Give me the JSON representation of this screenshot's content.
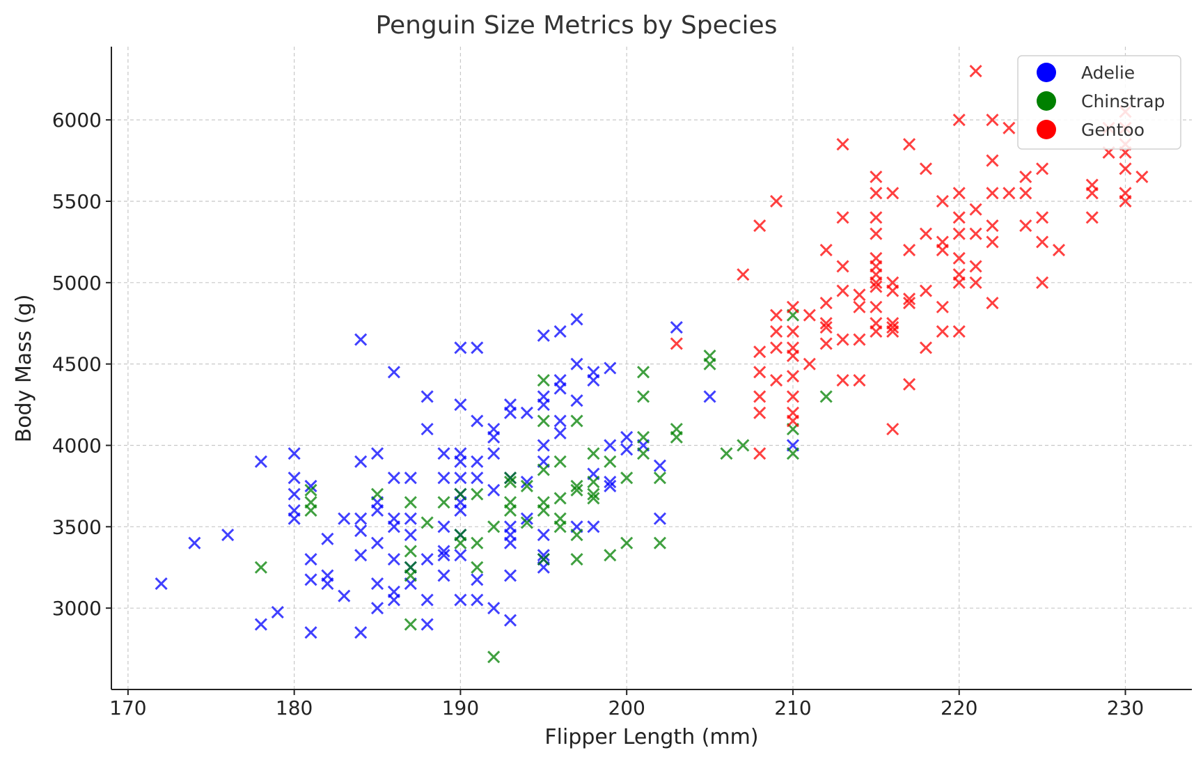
{
  "chart_data": {
    "type": "scatter",
    "title": "Penguin Size Metrics by Species",
    "xlabel": "Flipper Length (mm)",
    "ylabel": "Body Mass (g)",
    "xlim": [
      169,
      234
    ],
    "ylim": [
      2500,
      6450
    ],
    "xticks": [
      170,
      180,
      190,
      200,
      210,
      220,
      230
    ],
    "yticks": [
      3000,
      3500,
      4000,
      4500,
      5000,
      5500,
      6000
    ],
    "grid": true,
    "marker": "x",
    "legend_position": "top-right",
    "series": [
      {
        "name": "Adelie",
        "color": "#0000ff",
        "points": [
          [
            172,
            3150
          ],
          [
            174,
            3400
          ],
          [
            176,
            3450
          ],
          [
            178,
            3900
          ],
          [
            178,
            2900
          ],
          [
            179,
            2975
          ],
          [
            180,
            3950
          ],
          [
            180,
            3800
          ],
          [
            180,
            3700
          ],
          [
            180,
            3600
          ],
          [
            180,
            3550
          ],
          [
            181,
            3750
          ],
          [
            181,
            3300
          ],
          [
            181,
            3175
          ],
          [
            181,
            2850
          ],
          [
            182,
            3425
          ],
          [
            182,
            3200
          ],
          [
            182,
            3150
          ],
          [
            183,
            3550
          ],
          [
            183,
            3075
          ],
          [
            184,
            4650
          ],
          [
            184,
            3900
          ],
          [
            184,
            3550
          ],
          [
            184,
            3475
          ],
          [
            184,
            3325
          ],
          [
            184,
            2850
          ],
          [
            185,
            3950
          ],
          [
            185,
            3650
          ],
          [
            185,
            3600
          ],
          [
            185,
            3400
          ],
          [
            185,
            3150
          ],
          [
            185,
            3000
          ],
          [
            186,
            4450
          ],
          [
            186,
            3800
          ],
          [
            186,
            3550
          ],
          [
            186,
            3500
          ],
          [
            186,
            3300
          ],
          [
            186,
            3100
          ],
          [
            186,
            3050
          ],
          [
            187,
            3800
          ],
          [
            187,
            3550
          ],
          [
            187,
            3450
          ],
          [
            187,
            3250
          ],
          [
            187,
            3150
          ],
          [
            188,
            4300
          ],
          [
            188,
            4100
          ],
          [
            188,
            3300
          ],
          [
            188,
            3050
          ],
          [
            188,
            2900
          ],
          [
            189,
            3950
          ],
          [
            189,
            3800
          ],
          [
            189,
            3500
          ],
          [
            189,
            3350
          ],
          [
            189,
            3325
          ],
          [
            189,
            3200
          ],
          [
            190,
            4600
          ],
          [
            190,
            4250
          ],
          [
            190,
            3950
          ],
          [
            190,
            3900
          ],
          [
            190,
            3800
          ],
          [
            190,
            3700
          ],
          [
            190,
            3650
          ],
          [
            190,
            3600
          ],
          [
            190,
            3450
          ],
          [
            190,
            3325
          ],
          [
            190,
            3050
          ],
          [
            191,
            4600
          ],
          [
            191,
            4150
          ],
          [
            191,
            3900
          ],
          [
            191,
            3800
          ],
          [
            191,
            3175
          ],
          [
            191,
            3050
          ],
          [
            192,
            4100
          ],
          [
            192,
            4050
          ],
          [
            192,
            3950
          ],
          [
            192,
            3725
          ],
          [
            192,
            3000
          ],
          [
            193,
            4250
          ],
          [
            193,
            4200
          ],
          [
            193,
            3800
          ],
          [
            193,
            3500
          ],
          [
            193,
            3450
          ],
          [
            193,
            3400
          ],
          [
            193,
            3200
          ],
          [
            193,
            2925
          ],
          [
            194,
            4200
          ],
          [
            194,
            3775
          ],
          [
            194,
            3550
          ],
          [
            195,
            4675
          ],
          [
            195,
            4300
          ],
          [
            195,
            4250
          ],
          [
            195,
            4000
          ],
          [
            195,
            3900
          ],
          [
            195,
            3450
          ],
          [
            195,
            3325
          ],
          [
            195,
            3300
          ],
          [
            195,
            3250
          ],
          [
            196,
            4700
          ],
          [
            196,
            4400
          ],
          [
            196,
            4350
          ],
          [
            196,
            4150
          ],
          [
            196,
            4075
          ],
          [
            197,
            4775
          ],
          [
            197,
            4500
          ],
          [
            197,
            4275
          ],
          [
            197,
            3500
          ],
          [
            198,
            4450
          ],
          [
            198,
            4400
          ],
          [
            198,
            3825
          ],
          [
            198,
            3500
          ],
          [
            199,
            4475
          ],
          [
            199,
            4000
          ],
          [
            199,
            3775
          ],
          [
            199,
            3750
          ],
          [
            200,
            4050
          ],
          [
            200,
            3975
          ],
          [
            201,
            4000
          ],
          [
            202,
            3875
          ],
          [
            202,
            3550
          ],
          [
            203,
            4725
          ],
          [
            205,
            4300
          ],
          [
            210,
            4000
          ]
        ]
      },
      {
        "name": "Chinstrap",
        "color": "#008000",
        "points": [
          [
            178,
            3250
          ],
          [
            181,
            3725
          ],
          [
            181,
            3650
          ],
          [
            181,
            3600
          ],
          [
            185,
            3700
          ],
          [
            187,
            3650
          ],
          [
            187,
            3350
          ],
          [
            187,
            3250
          ],
          [
            187,
            3200
          ],
          [
            187,
            2900
          ],
          [
            188,
            3525
          ],
          [
            189,
            3650
          ],
          [
            190,
            3700
          ],
          [
            190,
            3450
          ],
          [
            190,
            3400
          ],
          [
            191,
            3700
          ],
          [
            191,
            3400
          ],
          [
            191,
            3250
          ],
          [
            192,
            3500
          ],
          [
            192,
            2700
          ],
          [
            193,
            3800
          ],
          [
            193,
            3775
          ],
          [
            193,
            3650
          ],
          [
            193,
            3600
          ],
          [
            194,
            3525
          ],
          [
            194,
            3750
          ],
          [
            195,
            4400
          ],
          [
            195,
            4150
          ],
          [
            195,
            3850
          ],
          [
            195,
            3650
          ],
          [
            195,
            3600
          ],
          [
            195,
            3300
          ],
          [
            196,
            3900
          ],
          [
            196,
            3675
          ],
          [
            196,
            3550
          ],
          [
            196,
            3500
          ],
          [
            197,
            4150
          ],
          [
            197,
            3750
          ],
          [
            197,
            3725
          ],
          [
            197,
            3450
          ],
          [
            197,
            3300
          ],
          [
            198,
            3950
          ],
          [
            198,
            3775
          ],
          [
            198,
            3700
          ],
          [
            198,
            3675
          ],
          [
            199,
            3900
          ],
          [
            199,
            3325
          ],
          [
            200,
            3800
          ],
          [
            200,
            3400
          ],
          [
            201,
            4450
          ],
          [
            201,
            4300
          ],
          [
            201,
            4050
          ],
          [
            201,
            3950
          ],
          [
            202,
            3800
          ],
          [
            202,
            3400
          ],
          [
            203,
            4100
          ],
          [
            203,
            4050
          ],
          [
            205,
            4550
          ],
          [
            205,
            4500
          ],
          [
            206,
            3950
          ],
          [
            207,
            4000
          ],
          [
            210,
            4800
          ],
          [
            210,
            4100
          ],
          [
            210,
            3950
          ],
          [
            212,
            4300
          ]
        ]
      },
      {
        "name": "Gentoo",
        "color": "#ff0000",
        "points": [
          [
            203,
            4625
          ],
          [
            207,
            5050
          ],
          [
            208,
            5350
          ],
          [
            208,
            4575
          ],
          [
            208,
            4450
          ],
          [
            208,
            4300
          ],
          [
            208,
            4200
          ],
          [
            208,
            3950
          ],
          [
            209,
            5500
          ],
          [
            209,
            4800
          ],
          [
            209,
            4700
          ],
          [
            209,
            4600
          ],
          [
            209,
            4400
          ],
          [
            210,
            4850
          ],
          [
            210,
            4700
          ],
          [
            210,
            4600
          ],
          [
            210,
            4550
          ],
          [
            210,
            4425
          ],
          [
            210,
            4300
          ],
          [
            210,
            4200
          ],
          [
            210,
            4150
          ],
          [
            211,
            4800
          ],
          [
            211,
            4500
          ],
          [
            212,
            5200
          ],
          [
            212,
            4875
          ],
          [
            212,
            4750
          ],
          [
            212,
            4725
          ],
          [
            212,
            4625
          ],
          [
            213,
            5850
          ],
          [
            213,
            5400
          ],
          [
            213,
            5100
          ],
          [
            213,
            4950
          ],
          [
            213,
            4650
          ],
          [
            213,
            4400
          ],
          [
            214,
            4925
          ],
          [
            214,
            4850
          ],
          [
            214,
            4650
          ],
          [
            214,
            4400
          ],
          [
            215,
            5650
          ],
          [
            215,
            5550
          ],
          [
            215,
            5400
          ],
          [
            215,
            5300
          ],
          [
            215,
            5150
          ],
          [
            215,
            5100
          ],
          [
            215,
            5050
          ],
          [
            215,
            5000
          ],
          [
            215,
            4975
          ],
          [
            215,
            4850
          ],
          [
            215,
            4750
          ],
          [
            215,
            4700
          ],
          [
            216,
            5550
          ],
          [
            216,
            5000
          ],
          [
            216,
            4950
          ],
          [
            216,
            4750
          ],
          [
            216,
            4725
          ],
          [
            216,
            4700
          ],
          [
            216,
            4100
          ],
          [
            217,
            5850
          ],
          [
            217,
            5200
          ],
          [
            217,
            4900
          ],
          [
            217,
            4875
          ],
          [
            217,
            4375
          ],
          [
            218,
            5700
          ],
          [
            218,
            5300
          ],
          [
            218,
            4950
          ],
          [
            218,
            4600
          ],
          [
            219,
            5500
          ],
          [
            219,
            5250
          ],
          [
            219,
            5200
          ],
          [
            219,
            4850
          ],
          [
            219,
            4700
          ],
          [
            220,
            6000
          ],
          [
            220,
            5550
          ],
          [
            220,
            5400
          ],
          [
            220,
            5300
          ],
          [
            220,
            5150
          ],
          [
            220,
            5050
          ],
          [
            220,
            5000
          ],
          [
            220,
            4700
          ],
          [
            221,
            6300
          ],
          [
            221,
            5450
          ],
          [
            221,
            5300
          ],
          [
            221,
            5100
          ],
          [
            221,
            5000
          ],
          [
            222,
            6000
          ],
          [
            222,
            5750
          ],
          [
            222,
            5550
          ],
          [
            222,
            5350
          ],
          [
            222,
            5250
          ],
          [
            222,
            4875
          ],
          [
            223,
            5950
          ],
          [
            223,
            5550
          ],
          [
            224,
            5650
          ],
          [
            224,
            5550
          ],
          [
            224,
            5350
          ],
          [
            225,
            5700
          ],
          [
            225,
            5400
          ],
          [
            225,
            5250
          ],
          [
            225,
            5000
          ],
          [
            226,
            5200
          ],
          [
            228,
            5600
          ],
          [
            228,
            5550
          ],
          [
            228,
            5400
          ],
          [
            229,
            5950
          ],
          [
            229,
            5800
          ],
          [
            230,
            6050
          ],
          [
            230,
            5950
          ],
          [
            230,
            5850
          ],
          [
            230,
            5800
          ],
          [
            230,
            5700
          ],
          [
            230,
            5550
          ],
          [
            230,
            5500
          ],
          [
            231,
            5650
          ]
        ]
      }
    ]
  }
}
